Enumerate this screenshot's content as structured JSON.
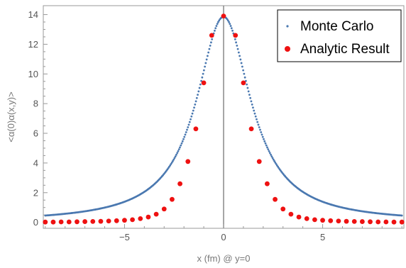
{
  "chart_data": {
    "type": "scatter",
    "xlabel": "x (fm) @ y=0",
    "ylabel": "<α(0)α(x,y)>",
    "xlim": [
      -9.1,
      9.1
    ],
    "ylim": [
      -0.4,
      14.6
    ],
    "x_ticks": [
      -5,
      0,
      5
    ],
    "y_ticks": [
      0,
      2,
      4,
      6,
      8,
      10,
      12,
      14
    ],
    "grid": false,
    "legend_position": "top-right",
    "colors": {
      "monte_carlo": "#4a78b0",
      "analytic": "#ee1111",
      "axis": "#888888",
      "frame": "#999999",
      "tick_text": "#555555"
    },
    "series": [
      {
        "name": "Monte Carlo",
        "marker": "small-dot",
        "function": "lorentzian",
        "params": {
          "amplitude": 13.85,
          "x0": 0,
          "gamma": 1.67
        },
        "x_range": [
          -9.0,
          9.0
        ],
        "sample_step": 0.045
      },
      {
        "name": "Analytic Result",
        "marker": "filled-circle",
        "x": [
          -9.0,
          -8.6,
          -8.2,
          -7.8,
          -7.4,
          -7.0,
          -6.6,
          -6.2,
          -5.8,
          -5.4,
          -5.0,
          -4.6,
          -4.2,
          -3.8,
          -3.4,
          -3.0,
          -2.6,
          -2.2,
          -1.8,
          -1.4,
          -1.0,
          -0.6,
          0.0,
          0.6,
          1.0,
          1.4,
          1.8,
          2.2,
          2.6,
          3.0,
          3.4,
          3.8,
          4.2,
          4.6,
          5.0,
          5.4,
          5.8,
          6.2,
          6.6,
          7.0,
          7.4,
          7.8,
          8.2,
          8.6,
          9.0
        ],
        "y": [
          0.02,
          0.02,
          0.03,
          0.03,
          0.04,
          0.05,
          0.06,
          0.07,
          0.09,
          0.11,
          0.14,
          0.18,
          0.25,
          0.36,
          0.55,
          0.9,
          1.55,
          2.6,
          4.1,
          6.3,
          9.4,
          12.6,
          13.9,
          12.6,
          9.4,
          6.3,
          4.1,
          2.6,
          1.55,
          0.9,
          0.55,
          0.36,
          0.25,
          0.18,
          0.14,
          0.11,
          0.09,
          0.07,
          0.06,
          0.05,
          0.04,
          0.03,
          0.03,
          0.02,
          0.02
        ]
      }
    ]
  }
}
